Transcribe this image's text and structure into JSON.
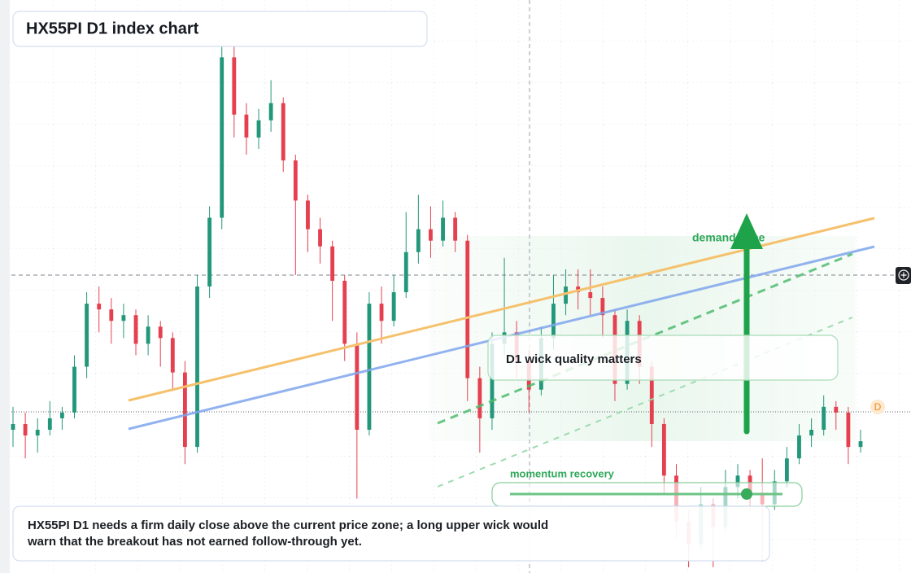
{
  "chart_data": {
    "type": "candlestick",
    "title": "HX55PI D1 index chart",
    "annotations": {
      "note": "HX55PI D1 needs a firm daily close above the current price zone; a long upper wick would warn that the breakout has not earned follow-through yet.",
      "callout": "D1 wick quality matters",
      "zone_label": "demand zone",
      "momentum_label": "momentum recovery",
      "tag": "D"
    },
    "up_color": "#22977a",
    "down_color": "#e5404f",
    "ylim": [
      0,
      100
    ],
    "ohlc": [
      [
        25,
        29,
        22,
        26
      ],
      [
        26,
        28,
        20,
        24
      ],
      [
        24,
        27,
        21,
        25
      ],
      [
        25,
        30,
        24,
        27
      ],
      [
        27,
        29,
        25,
        28
      ],
      [
        28,
        38,
        27,
        36
      ],
      [
        36,
        49,
        34,
        47
      ],
      [
        47,
        50,
        42,
        46
      ],
      [
        46,
        48,
        40,
        44
      ],
      [
        44,
        47,
        41,
        45
      ],
      [
        45,
        46,
        38,
        40
      ],
      [
        40,
        45,
        38,
        43
      ],
      [
        43,
        44,
        36,
        41
      ],
      [
        41,
        42,
        32,
        35
      ],
      [
        35,
        37,
        19,
        22
      ],
      [
        22,
        52,
        21,
        50
      ],
      [
        50,
        64,
        48,
        62
      ],
      [
        62,
        98,
        60,
        90
      ],
      [
        90,
        92,
        76,
        80
      ],
      [
        80,
        82,
        73,
        76
      ],
      [
        76,
        81,
        74,
        79
      ],
      [
        79,
        86,
        77,
        82
      ],
      [
        82,
        83,
        70,
        72
      ],
      [
        72,
        73,
        52,
        65
      ],
      [
        65,
        66,
        56,
        60
      ],
      [
        60,
        62,
        54,
        57
      ],
      [
        57,
        58,
        44,
        51
      ],
      [
        51,
        52,
        37,
        40
      ],
      [
        40,
        42,
        13,
        25
      ],
      [
        25,
        49,
        24,
        47
      ],
      [
        47,
        50,
        40,
        44
      ],
      [
        44,
        52,
        43,
        49
      ],
      [
        49,
        63,
        48,
        56
      ],
      [
        56,
        66,
        54,
        60
      ],
      [
        60,
        64,
        55,
        58
      ],
      [
        58,
        65,
        57,
        62
      ],
      [
        62,
        63,
        56,
        58
      ],
      [
        58,
        59,
        30,
        34
      ],
      [
        34,
        36,
        21,
        27
      ],
      [
        27,
        42,
        25,
        40
      ],
      [
        40,
        55,
        38,
        42
      ],
      [
        42,
        44,
        34,
        37
      ],
      [
        37,
        39,
        28,
        32
      ],
      [
        32,
        43,
        31,
        41
      ],
      [
        41,
        52,
        39,
        47
      ],
      [
        47,
        53,
        45,
        50
      ],
      [
        50,
        53,
        46,
        49
      ],
      [
        49,
        53,
        45,
        48
      ],
      [
        48,
        50,
        41,
        45
      ],
      [
        45,
        46,
        30,
        33
      ],
      [
        33,
        46,
        32,
        44
      ],
      [
        44,
        45,
        33,
        36
      ],
      [
        36,
        37,
        22,
        26
      ],
      [
        26,
        27,
        14,
        17
      ],
      [
        17,
        19,
        6,
        9
      ],
      [
        9,
        11,
        1,
        5
      ],
      [
        5,
        15,
        4,
        12
      ],
      [
        12,
        13,
        1,
        8
      ],
      [
        8,
        18,
        7,
        15
      ],
      [
        15,
        19,
        13,
        17
      ],
      [
        17,
        18,
        11,
        14
      ],
      [
        14,
        20,
        2,
        12
      ],
      [
        12,
        18,
        11,
        16
      ],
      [
        16,
        22,
        15,
        20
      ],
      [
        20,
        26,
        19,
        24
      ],
      [
        24,
        27,
        22,
        25
      ],
      [
        25,
        31,
        24,
        29
      ],
      [
        29,
        30,
        25,
        28
      ],
      [
        28,
        29,
        19,
        22
      ],
      [
        22,
        25,
        21,
        23
      ]
    ]
  }
}
